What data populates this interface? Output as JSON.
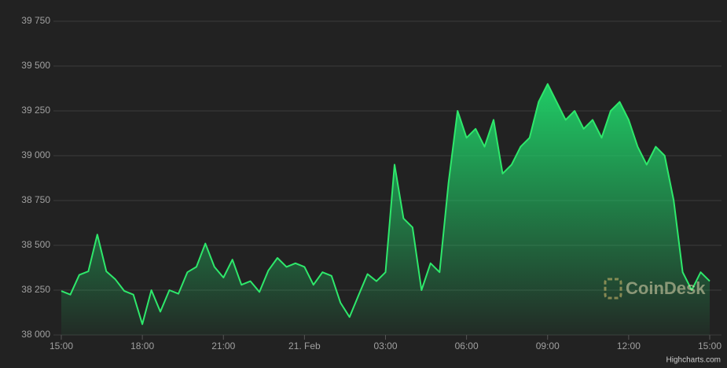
{
  "chart_data": {
    "type": "area",
    "watermark": "CoinDesk",
    "credits": "Highcharts.com",
    "color": "#2ee86b",
    "grid": true,
    "x": [
      "20. Feb 15:00",
      "20. Feb 15:20",
      "20. Feb 15:40",
      "20. Feb 16:00",
      "20. Feb 16:20",
      "20. Feb 16:40",
      "20. Feb 17:00",
      "20. Feb 17:20",
      "20. Feb 17:40",
      "20. Feb 18:00",
      "20. Feb 18:20",
      "20. Feb 18:40",
      "20. Feb 19:00",
      "20. Feb 19:20",
      "20. Feb 19:40",
      "20. Feb 20:00",
      "20. Feb 20:20",
      "20. Feb 20:40",
      "20. Feb 21:00",
      "20. Feb 21:20",
      "20. Feb 21:40",
      "20. Feb 22:00",
      "20. Feb 22:20",
      "20. Feb 22:40",
      "20. Feb 23:00",
      "20. Feb 23:20",
      "20. Feb 23:40",
      "21. Feb 00:00",
      "21. Feb 00:20",
      "21. Feb 00:40",
      "21. Feb 01:00",
      "21. Feb 01:20",
      "21. Feb 01:40",
      "21. Feb 02:00",
      "21. Feb 02:20",
      "21. Feb 02:40",
      "21. Feb 03:00",
      "21. Feb 03:20",
      "21. Feb 03:40",
      "21. Feb 04:00",
      "21. Feb 04:20",
      "21. Feb 04:40",
      "21. Feb 05:00",
      "21. Feb 05:20",
      "21. Feb 05:40",
      "21. Feb 06:00",
      "21. Feb 06:20",
      "21. Feb 06:40",
      "21. Feb 07:00",
      "21. Feb 07:20",
      "21. Feb 07:40",
      "21. Feb 08:00",
      "21. Feb 08:20",
      "21. Feb 08:40",
      "21. Feb 09:00",
      "21. Feb 09:20",
      "21. Feb 09:40",
      "21. Feb 10:00",
      "21. Feb 10:20",
      "21. Feb 10:40",
      "21. Feb 11:00",
      "21. Feb 11:20",
      "21. Feb 11:40",
      "21. Feb 12:00",
      "21. Feb 12:20",
      "21. Feb 12:40",
      "21. Feb 13:00",
      "21. Feb 13:20",
      "21. Feb 13:40",
      "21. Feb 14:00",
      "21. Feb 14:20",
      "21. Feb 14:40",
      "21. Feb 15:00"
    ],
    "values": [
      38245,
      38225,
      38335,
      38355,
      38560,
      38355,
      38310,
      38245,
      38225,
      38060,
      38250,
      38130,
      38250,
      38230,
      38350,
      38380,
      38510,
      38380,
      38320,
      38420,
      38280,
      38300,
      38240,
      38360,
      38430,
      38380,
      38400,
      38380,
      38280,
      38350,
      38330,
      38180,
      38100,
      38220,
      38340,
      38300,
      38350,
      38950,
      38650,
      38600,
      38250,
      38400,
      38350,
      38850,
      39250,
      39100,
      39150,
      39050,
      39200,
      38900,
      38950,
      39050,
      39100,
      39300,
      39400,
      39300,
      39200,
      39250,
      39150,
      39200,
      39100,
      39250,
      39300,
      39200,
      39050,
      38950,
      39050,
      39000,
      38750,
      38350,
      38250,
      38350,
      38300
    ],
    "ylim": [
      38000,
      39750
    ],
    "yticks": [
      {
        "value": 38000,
        "label": "38 000"
      },
      {
        "value": 38250,
        "label": "38 250"
      },
      {
        "value": 38500,
        "label": "38 500"
      },
      {
        "value": 38750,
        "label": "38 750"
      },
      {
        "value": 39000,
        "label": "39 000"
      },
      {
        "value": 39250,
        "label": "39 250"
      },
      {
        "value": 39500,
        "label": "39 500"
      },
      {
        "value": 39750,
        "label": "39 750"
      }
    ],
    "xticks": [
      {
        "value": "20. Feb 15:00",
        "label": "15:00"
      },
      {
        "value": "20. Feb 18:00",
        "label": "18:00"
      },
      {
        "value": "20. Feb 21:00",
        "label": "21:00"
      },
      {
        "value": "21. Feb 00:00",
        "label": "21. Feb"
      },
      {
        "value": "21. Feb 03:00",
        "label": "03:00"
      },
      {
        "value": "21. Feb 06:00",
        "label": "06:00"
      },
      {
        "value": "21. Feb 09:00",
        "label": "09:00"
      },
      {
        "value": "21. Feb 12:00",
        "label": "12:00"
      },
      {
        "value": "21. Feb 15:00",
        "label": "15:00"
      }
    ]
  }
}
